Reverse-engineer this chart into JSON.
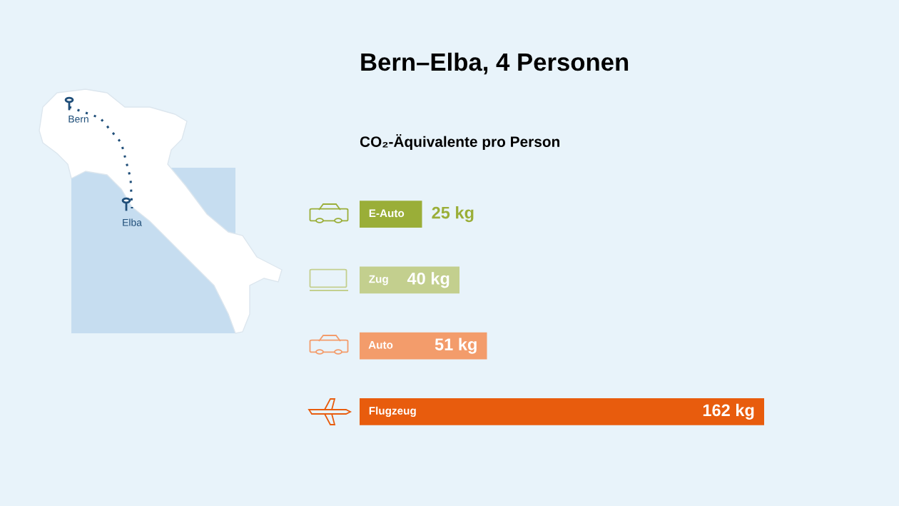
{
  "chart_data": {
    "type": "bar",
    "orientation": "horizontal",
    "title": "Bern–Elba, 4 Personen",
    "subtitle": "CO₂-Äquivalente pro Person",
    "categories": [
      "E-Auto",
      "Zug",
      "Auto",
      "Flugzeug"
    ],
    "values": [
      25,
      40,
      51,
      162
    ],
    "value_labels": [
      "25 kg",
      "40 kg",
      "51 kg",
      "162 kg"
    ],
    "colors": [
      "#9aae38",
      "#c3cf8e",
      "#f39c6b",
      "#e85c0d"
    ],
    "legend": false,
    "annotations": [
      "Bern",
      "Elba"
    ]
  }
}
